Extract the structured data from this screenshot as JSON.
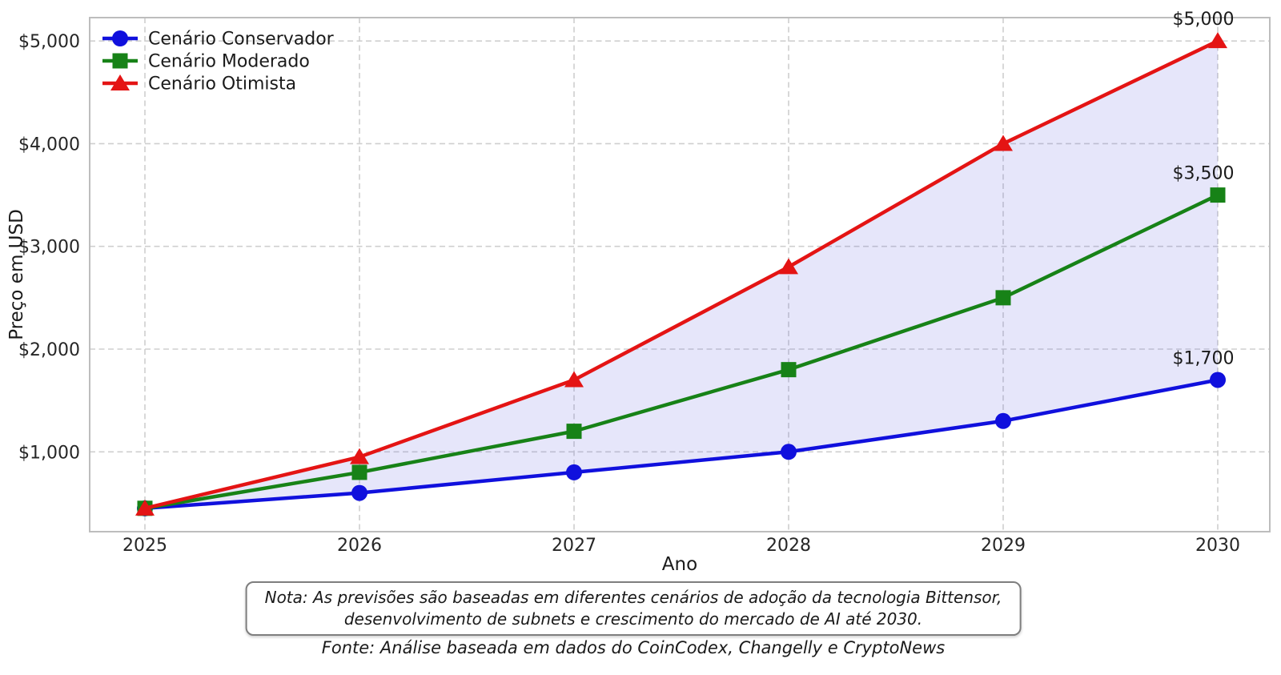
{
  "chart_data": {
    "type": "line",
    "title": "",
    "xlabel": "Ano",
    "ylabel": "Preço em USD",
    "x": [
      2025,
      2026,
      2027,
      2028,
      2029,
      2030
    ],
    "y_ticks": [
      1000,
      2000,
      3000,
      4000,
      5000
    ],
    "y_tick_labels": [
      "$1,000",
      "$2,000",
      "$3,000",
      "$4,000",
      "$5,000"
    ],
    "ylim": [
      222.5,
      5227.5
    ],
    "grid": true,
    "grid_style": "dashed",
    "legend_position": "upper-left",
    "series": [
      {
        "name": "Cenário Conservador",
        "marker": "circle",
        "color": "#1010dd",
        "values": [
          450,
          600,
          800,
          1000,
          1300,
          1700
        ]
      },
      {
        "name": "Cenário Moderado",
        "marker": "square",
        "color": "#178217",
        "values": [
          450,
          800,
          1200,
          1800,
          2500,
          3500
        ]
      },
      {
        "name": "Cenário Otimista",
        "marker": "triangle",
        "color": "#e41414",
        "values": [
          450,
          950,
          1700,
          2800,
          4000,
          5000
        ]
      }
    ],
    "band": {
      "between": [
        "Cenário Conservador",
        "Cenário Otimista"
      ],
      "color": "rgba(100,100,225,0.16)"
    },
    "annotations": [
      {
        "text": "$5,000",
        "year": 2030,
        "value": 5000
      },
      {
        "text": "$3,500",
        "year": 2030,
        "value": 3500
      },
      {
        "text": "$1,700",
        "year": 2030,
        "value": 1700
      }
    ],
    "colors": {
      "grid": "#cfcfcf",
      "spine": "#bdbdbd",
      "tick_text": "#262626",
      "text": "#1a1a1a"
    }
  },
  "note": {
    "line1": "Nota: As previsões são baseadas em diferentes cenários de adoção da tecnologia Bittensor,",
    "line2": "desenvolvimento de subnets e crescimento do mercado de AI até 2030."
  },
  "footer": {
    "text": "Fonte: Análise baseada em dados do CoinCodex, Changelly e CryptoNews"
  }
}
